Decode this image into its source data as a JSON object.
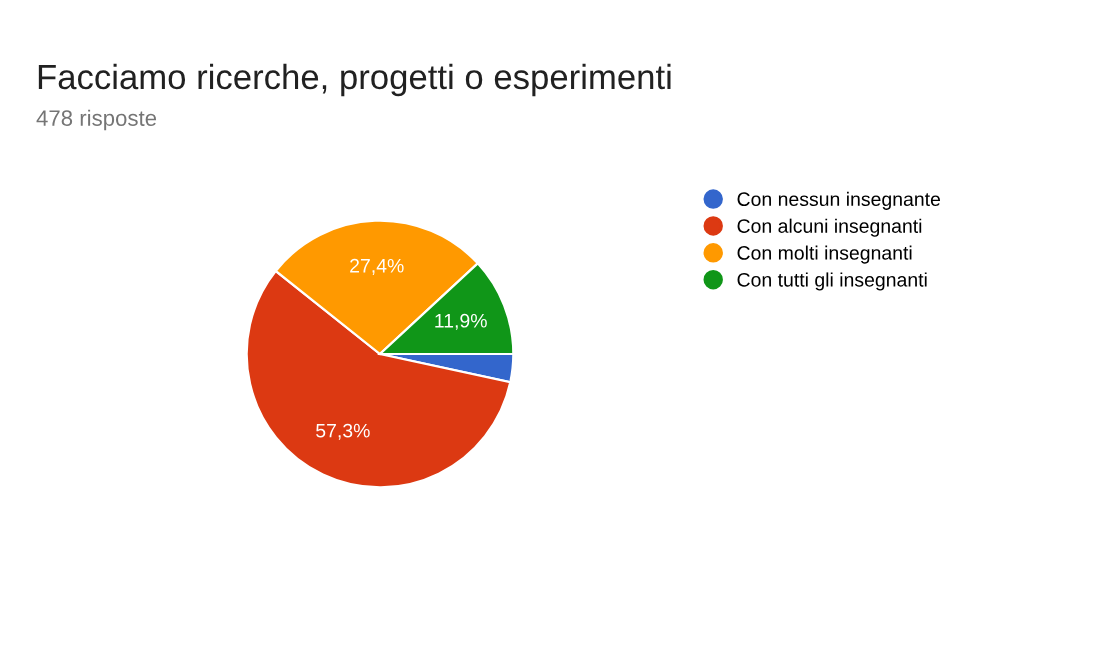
{
  "chart_data": {
    "type": "pie",
    "title": "Facciamo ricerche, progetti o esperimenti",
    "subtitle": "478 risposte",
    "categories": [
      "Con nessun insegnante",
      "Con alcuni insegnanti",
      "Con molti insegnanti",
      "Con tutti gli insegnanti"
    ],
    "values": [
      3.4,
      57.3,
      27.4,
      11.9
    ],
    "colors": [
      "#3366cc",
      "#dc3912",
      "#ff9900",
      "#109618"
    ],
    "value_labels": [
      null,
      "57,3%",
      "27,4%",
      "11,9%"
    ],
    "legend": "right"
  }
}
